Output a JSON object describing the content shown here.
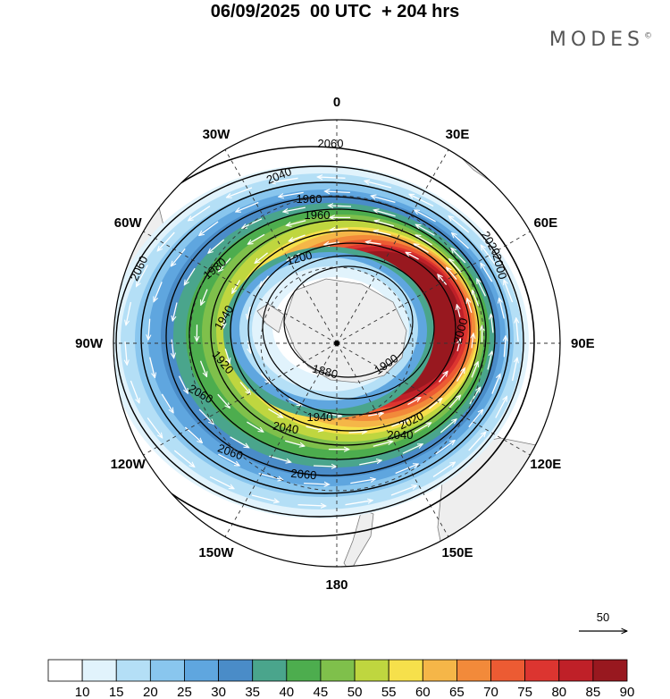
{
  "title": "06/09/2025  00 UTC  + 204 hrs",
  "brand": "MODES",
  "brand_mark": "©",
  "map": {
    "projection": "south-polar-stereographic",
    "longitude_labels": [
      "0",
      "30E",
      "60E",
      "90E",
      "120E",
      "150E",
      "180",
      "150W",
      "120W",
      "90W",
      "60W",
      "30W"
    ],
    "contour_labels": [
      "2060",
      "2040",
      "1960",
      "1200",
      "1980",
      "1940",
      "1880",
      "1900",
      "1920",
      "2000",
      "2020",
      "2060",
      "2040",
      "2060",
      "2060",
      "2020",
      "2000",
      "1940",
      "1960",
      "2040",
      "2060"
    ],
    "vector_reference": "50"
  },
  "colorbar": {
    "labels": [
      "10",
      "15",
      "20",
      "25",
      "30",
      "35",
      "40",
      "45",
      "50",
      "55",
      "60",
      "65",
      "70",
      "75",
      "80",
      "85",
      "90"
    ],
    "colors": [
      "#ffffff",
      "#e1f3fc",
      "#b4dff6",
      "#89c6ee",
      "#5fa6df",
      "#4a8cc8",
      "#4aa58c",
      "#4dad4e",
      "#7fc04b",
      "#bfd63f",
      "#f6e04b",
      "#f5b648",
      "#f28a3a",
      "#ec5b33",
      "#dc3530",
      "#bf2028",
      "#98181f"
    ]
  },
  "colors": {
    "land": "#eeeeee",
    "coast": "#7b7b7b",
    "grid": "#333333",
    "contour": "#000000",
    "arrows": "#ffffff"
  }
}
